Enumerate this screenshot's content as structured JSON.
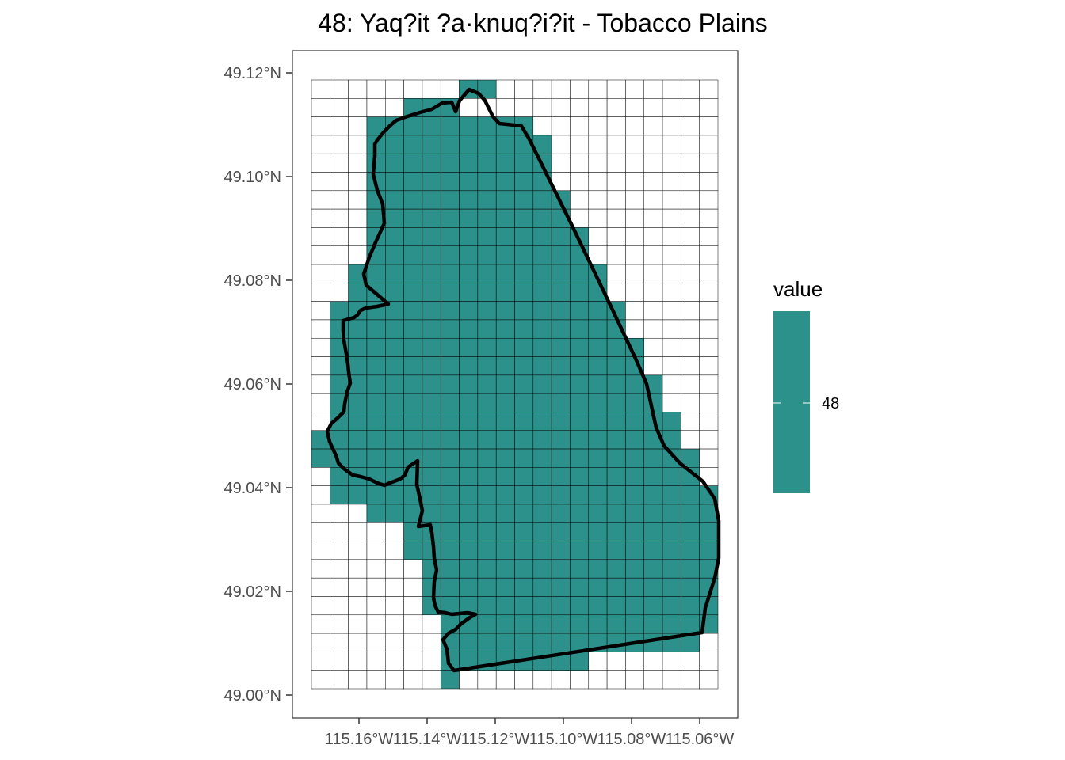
{
  "title": "48: Yaq?it ?a·knuq?i?it - Tobacco Plains",
  "colors": {
    "fill": "#2c918a",
    "grid": "#000000",
    "boundary": "#000000",
    "panel_border": "#333333"
  },
  "axes": {
    "x_ticks": [
      "115.16°W",
      "115.14°W",
      "115.12°W",
      "115.10°W",
      "115.08°W",
      "115.06°W"
    ],
    "y_ticks": [
      "49.12°N",
      "49.10°N",
      "49.08°N",
      "49.06°N",
      "49.04°N",
      "49.02°N",
      "49.00°N"
    ]
  },
  "legend": {
    "title": "value",
    "label": "48"
  },
  "raster": {
    "ncols": 22,
    "nrows": 33,
    "filled_col_ranges_by_row": [
      [
        8,
        9
      ],
      [
        5,
        7
      ],
      [
        3,
        11
      ],
      [
        3,
        12
      ],
      [
        3,
        12
      ],
      [
        3,
        12
      ],
      [
        3,
        13
      ],
      [
        3,
        13
      ],
      [
        3,
        14
      ],
      [
        3,
        14
      ],
      [
        2,
        15
      ],
      [
        2,
        15
      ],
      [
        1,
        16
      ],
      [
        1,
        16
      ],
      [
        1,
        17
      ],
      [
        1,
        17
      ],
      [
        1,
        18
      ],
      [
        1,
        18
      ],
      [
        1,
        19
      ],
      [
        0,
        19
      ],
      [
        0,
        20
      ],
      [
        1,
        20
      ],
      [
        1,
        21
      ],
      [
        3,
        21
      ],
      [
        5,
        21
      ],
      [
        5,
        21
      ],
      [
        6,
        21
      ],
      [
        6,
        21
      ],
      [
        6,
        21
      ],
      [
        7,
        21
      ],
      [
        7,
        20
      ],
      [
        7,
        14
      ],
      [
        7,
        7
      ]
    ]
  }
}
